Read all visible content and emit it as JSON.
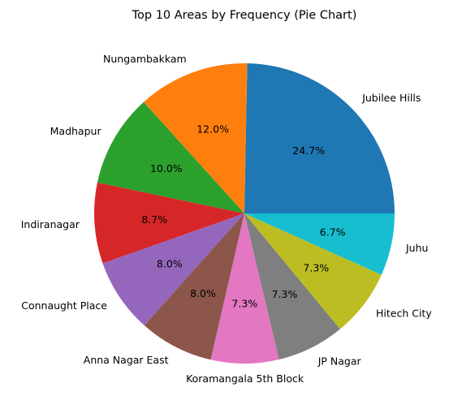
{
  "chart_data": {
    "type": "pie",
    "title": "Top 10 Areas by Frequency (Pie Chart)",
    "categories": [
      "Jubilee Hills",
      "Nungambakkam",
      "Madhapur",
      "Indiranagar",
      "Connaught Place",
      "Anna Nagar East",
      "Koramangala 5th Block",
      "JP Nagar",
      "Hitech City",
      "Juhu"
    ],
    "values": [
      24.7,
      12.0,
      10.0,
      8.7,
      8.0,
      8.0,
      7.3,
      7.3,
      7.3,
      6.7
    ],
    "percent_labels": [
      "24.7%",
      "12.0%",
      "10.0%",
      "8.7%",
      "8.0%",
      "8.0%",
      "7.3%",
      "7.3%",
      "7.3%",
      "6.7%"
    ],
    "colors": [
      "#1f77b4",
      "#ff7f0e",
      "#2ca02c",
      "#d62728",
      "#9467bd",
      "#8c564b",
      "#e377c2",
      "#7f7f7f",
      "#bcbd22",
      "#17becf"
    ],
    "start_angle_deg": 0,
    "direction": "counterclockwise"
  }
}
